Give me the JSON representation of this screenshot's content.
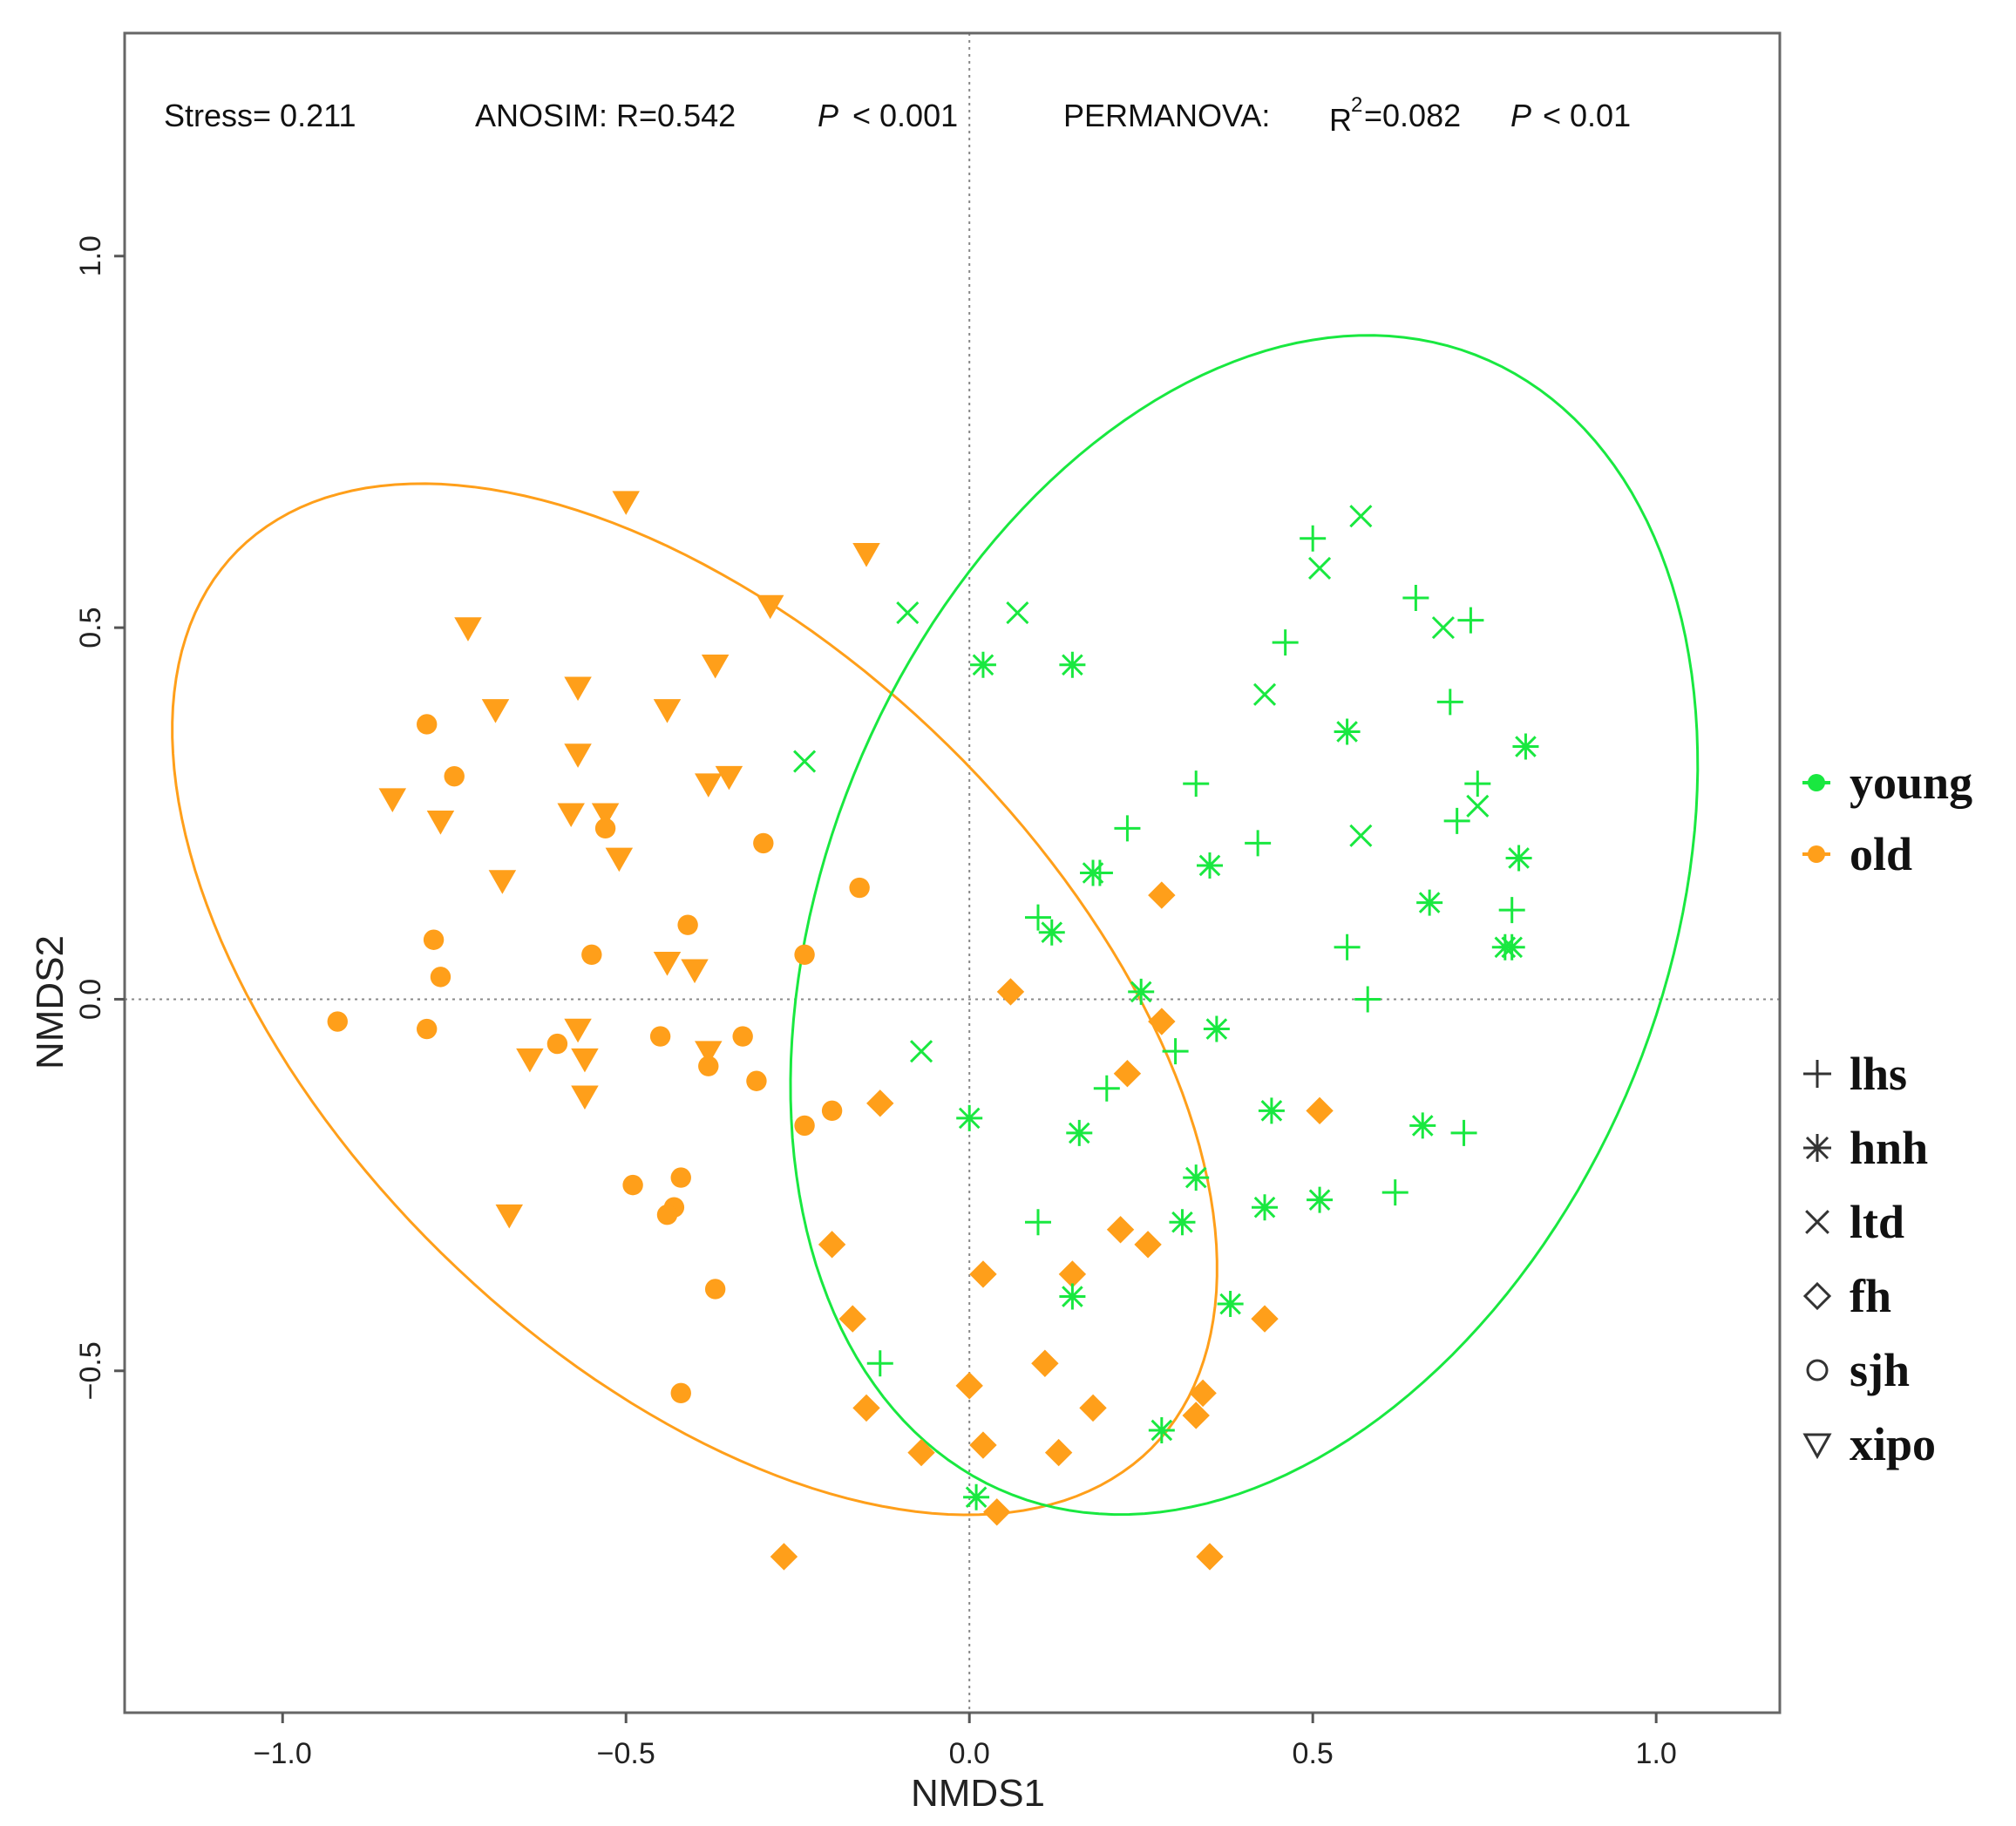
{
  "chart_data": {
    "type": "scatter",
    "xlabel": "NMDS1",
    "ylabel": "NMDS2",
    "xlim": [
      -1.23,
      1.18
    ],
    "ylim": [
      -0.96,
      1.3
    ],
    "xticks": [
      -1.0,
      -0.5,
      0.0,
      0.5,
      1.0
    ],
    "xtick_labels": [
      "−1.0",
      "−0.5",
      "0.0",
      "0.5",
      "1.0"
    ],
    "yticks": [
      -0.5,
      0.0,
      0.5,
      1.0
    ],
    "ytick_labels": [
      "−0.5",
      "0.0",
      "0.5",
      "1.0"
    ],
    "reference_lines": {
      "x": 0,
      "y": 0
    },
    "annotations": {
      "stress": "Stress= 0.211",
      "anosim_label": "ANOSIM: R=0.542",
      "anosim_p_sym": "P",
      "anosim_p_val": "< 0.001",
      "permanova_label": "PERMANOVA:",
      "permanova_r": "R",
      "permanova_sup": "2",
      "permanova_rval": "=0.082",
      "permanova_p_sym": "P",
      "permanova_p_val": "< 0.01"
    },
    "colors": {
      "young": "#19e840",
      "old": "#ff9f1a"
    },
    "group_legend": [
      {
        "key": "young",
        "label": "young",
        "color": "#19e840"
      },
      {
        "key": "old",
        "label": "old",
        "color": "#ff9f1a"
      }
    ],
    "site_legend": [
      {
        "key": "lhs",
        "label": "lhs",
        "shape": "plus"
      },
      {
        "key": "hnh",
        "label": "hnh",
        "shape": "asterisk"
      },
      {
        "key": "ltd",
        "label": "ltd",
        "shape": "cross"
      },
      {
        "key": "fh",
        "label": "fh",
        "shape": "diamond"
      },
      {
        "key": "sjh",
        "label": "sjh",
        "shape": "circle"
      },
      {
        "key": "xipo",
        "label": "xipo",
        "shape": "triangle-down"
      }
    ],
    "ellipses": [
      {
        "group": "old",
        "cx": -0.4,
        "cy": 0.0,
        "rx": 0.9,
        "ry": 0.5,
        "angle_deg": -40
      },
      {
        "group": "young",
        "cx": 0.4,
        "cy": 0.1,
        "rx": 0.84,
        "ry": 0.6,
        "angle_deg": 62
      }
    ],
    "series": [
      {
        "group": "old",
        "site": "xipo",
        "points": [
          [
            -0.5,
            0.67
          ],
          [
            -0.15,
            0.6
          ],
          [
            -0.29,
            0.53
          ],
          [
            -0.73,
            0.5
          ],
          [
            -0.37,
            0.45
          ],
          [
            -0.57,
            0.42
          ],
          [
            -0.44,
            0.39
          ],
          [
            -0.69,
            0.39
          ],
          [
            -0.57,
            0.33
          ],
          [
            -0.38,
            0.29
          ],
          [
            -0.35,
            0.3
          ],
          [
            -0.84,
            0.27
          ],
          [
            -0.77,
            0.24
          ],
          [
            -0.58,
            0.25
          ],
          [
            -0.53,
            0.25
          ],
          [
            -0.51,
            0.19
          ],
          [
            -0.68,
            0.16
          ],
          [
            -0.44,
            0.05
          ],
          [
            -0.4,
            0.04
          ],
          [
            -0.57,
            -0.04
          ],
          [
            -0.38,
            -0.07
          ],
          [
            -0.64,
            -0.08
          ],
          [
            -0.56,
            -0.08
          ],
          [
            -0.56,
            -0.13
          ],
          [
            -0.67,
            -0.29
          ]
        ]
      },
      {
        "group": "old",
        "site": "sjh",
        "points": [
          [
            -0.79,
            0.37
          ],
          [
            -0.75,
            0.3
          ],
          [
            -0.3,
            0.21
          ],
          [
            -0.16,
            0.15
          ],
          [
            -0.53,
            0.23
          ],
          [
            -0.41,
            0.1
          ],
          [
            -0.78,
            0.08
          ],
          [
            -0.55,
            0.06
          ],
          [
            -0.24,
            0.06
          ],
          [
            -0.77,
            0.03
          ],
          [
            -0.92,
            -0.03
          ],
          [
            -0.79,
            -0.04
          ],
          [
            -0.45,
            -0.05
          ],
          [
            -0.33,
            -0.05
          ],
          [
            -0.6,
            -0.06
          ],
          [
            -0.38,
            -0.09
          ],
          [
            -0.31,
            -0.11
          ],
          [
            -0.2,
            -0.15
          ],
          [
            -0.24,
            -0.17
          ],
          [
            -0.49,
            -0.25
          ],
          [
            -0.42,
            -0.24
          ],
          [
            -0.43,
            -0.28
          ],
          [
            -0.44,
            -0.29
          ],
          [
            -0.37,
            -0.39
          ],
          [
            -0.42,
            -0.53
          ]
        ]
      },
      {
        "group": "old",
        "site": "fh",
        "points": [
          [
            0.28,
            0.14
          ],
          [
            0.06,
            0.01
          ],
          [
            0.28,
            -0.03
          ],
          [
            0.23,
            -0.1
          ],
          [
            0.51,
            -0.15
          ],
          [
            -0.13,
            -0.14
          ],
          [
            -0.2,
            -0.33
          ],
          [
            0.02,
            -0.37
          ],
          [
            0.15,
            -0.37
          ],
          [
            0.22,
            -0.31
          ],
          [
            0.26,
            -0.33
          ],
          [
            -0.17,
            -0.43
          ],
          [
            0.43,
            -0.43
          ],
          [
            0.11,
            -0.49
          ],
          [
            0.0,
            -0.52
          ],
          [
            -0.15,
            -0.55
          ],
          [
            0.18,
            -0.55
          ],
          [
            0.34,
            -0.53
          ],
          [
            0.33,
            -0.56
          ],
          [
            -0.07,
            -0.61
          ],
          [
            0.02,
            -0.6
          ],
          [
            0.13,
            -0.61
          ],
          [
            0.04,
            -0.69
          ],
          [
            -0.27,
            -0.75
          ],
          [
            0.35,
            -0.75
          ]
        ]
      },
      {
        "group": "young",
        "site": "lhs",
        "points": [
          [
            0.5,
            0.62
          ],
          [
            0.46,
            0.48
          ],
          [
            0.65,
            0.54
          ],
          [
            0.73,
            0.51
          ],
          [
            0.7,
            0.4
          ],
          [
            0.33,
            0.29
          ],
          [
            0.23,
            0.23
          ],
          [
            0.42,
            0.21
          ],
          [
            0.74,
            0.29
          ],
          [
            0.71,
            0.24
          ],
          [
            0.79,
            0.12
          ],
          [
            0.19,
            0.17
          ],
          [
            0.1,
            0.11
          ],
          [
            0.55,
            0.07
          ],
          [
            0.58,
            0.0
          ],
          [
            0.3,
            -0.07
          ],
          [
            0.2,
            -0.12
          ],
          [
            0.72,
            -0.18
          ],
          [
            0.1,
            -0.3
          ],
          [
            0.62,
            -0.26
          ],
          [
            -0.13,
            -0.49
          ]
        ]
      },
      {
        "group": "young",
        "site": "hnh",
        "points": [
          [
            0.02,
            0.45
          ],
          [
            0.15,
            0.45
          ],
          [
            0.55,
            0.36
          ],
          [
            0.81,
            0.34
          ],
          [
            0.35,
            0.18
          ],
          [
            0.18,
            0.17
          ],
          [
            0.8,
            0.19
          ],
          [
            0.67,
            0.13
          ],
          [
            0.12,
            0.09
          ],
          [
            0.78,
            0.07
          ],
          [
            0.79,
            0.07
          ],
          [
            0.25,
            0.01
          ],
          [
            0.36,
            -0.04
          ],
          [
            0.0,
            -0.16
          ],
          [
            0.16,
            -0.18
          ],
          [
            0.44,
            -0.15
          ],
          [
            0.66,
            -0.17
          ],
          [
            0.33,
            -0.24
          ],
          [
            0.31,
            -0.3
          ],
          [
            0.43,
            -0.28
          ],
          [
            0.51,
            -0.27
          ],
          [
            0.15,
            -0.4
          ],
          [
            0.38,
            -0.41
          ],
          [
            0.28,
            -0.58
          ],
          [
            0.01,
            -0.67
          ]
        ]
      },
      {
        "group": "young",
        "site": "ltd",
        "points": [
          [
            0.57,
            0.65
          ],
          [
            0.51,
            0.58
          ],
          [
            -0.09,
            0.52
          ],
          [
            0.07,
            0.52
          ],
          [
            0.69,
            0.5
          ],
          [
            0.43,
            0.41
          ],
          [
            0.74,
            0.26
          ],
          [
            0.57,
            0.22
          ],
          [
            -0.24,
            0.32
          ],
          [
            -0.07,
            -0.07
          ]
        ]
      }
    ]
  }
}
